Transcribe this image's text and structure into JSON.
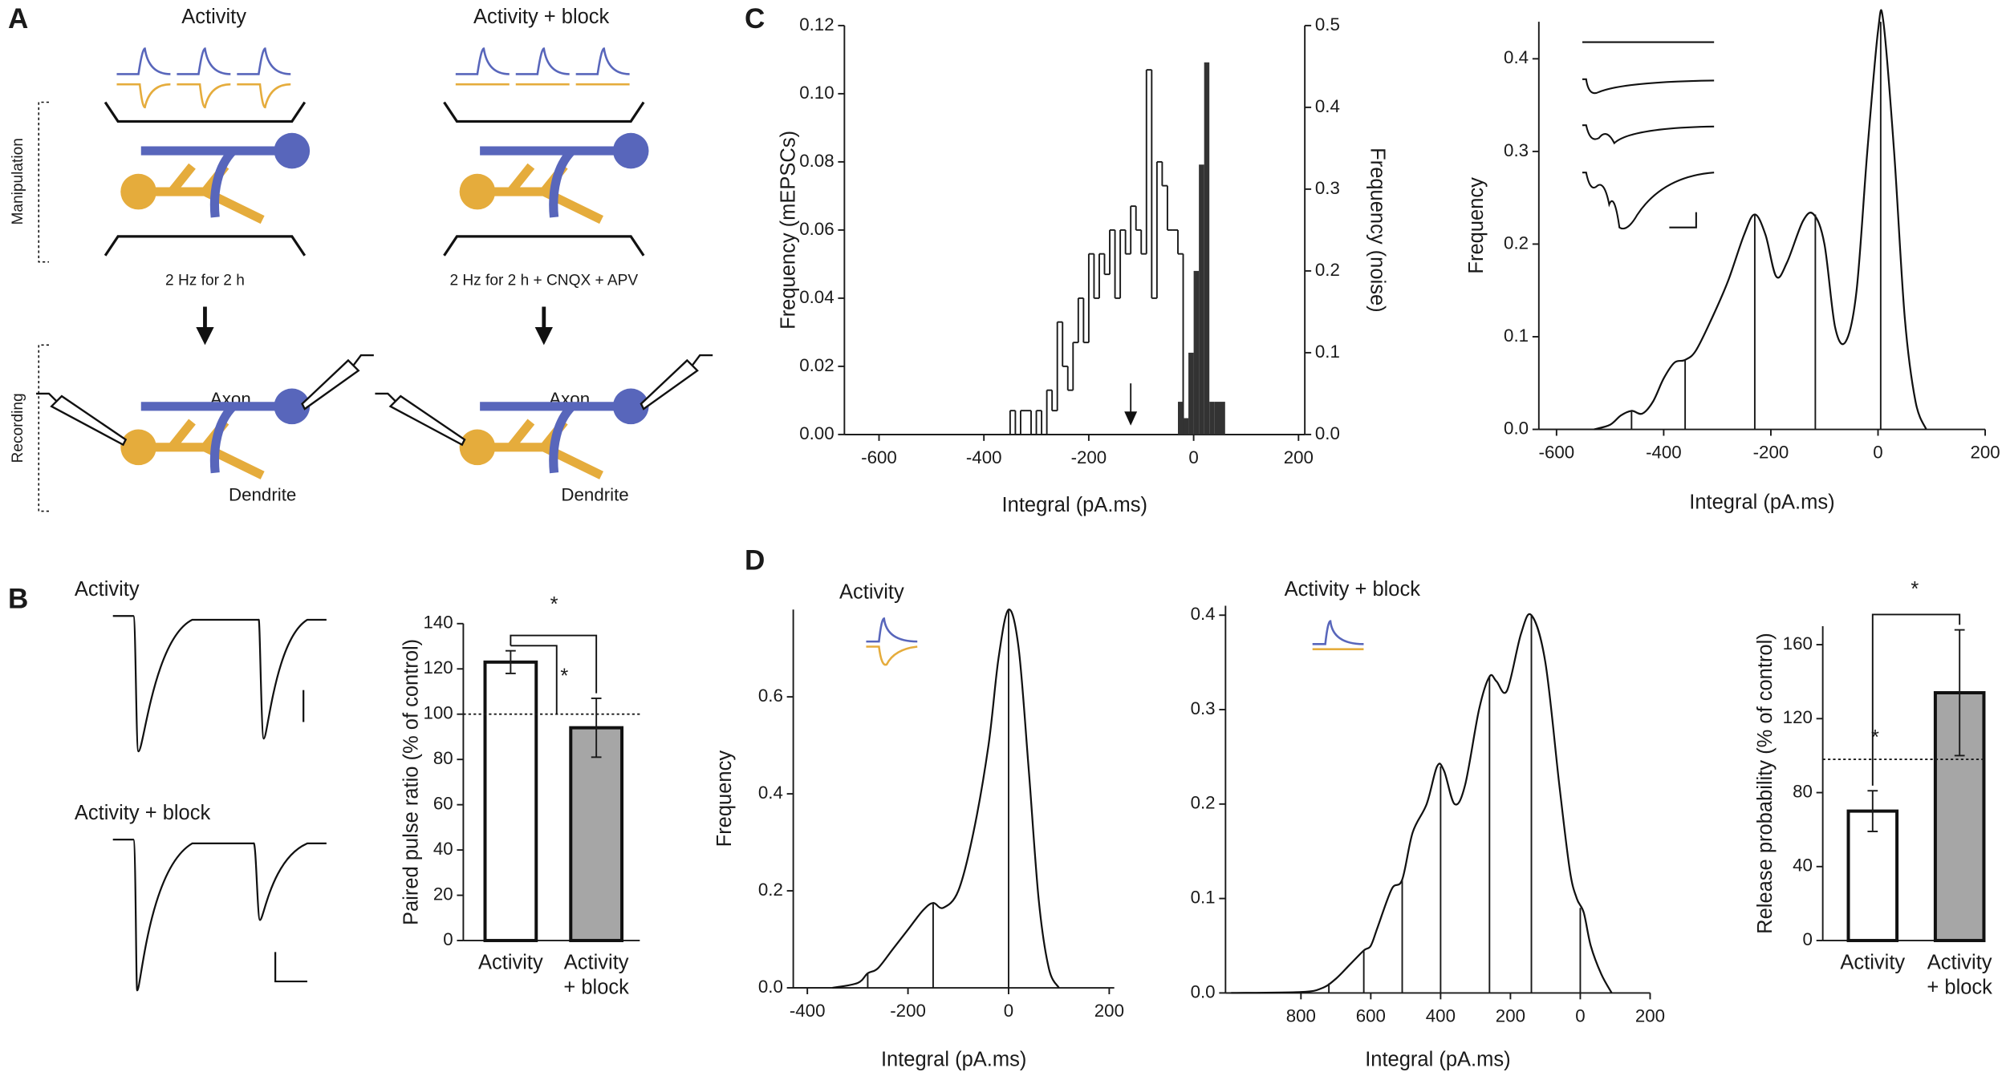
{
  "panel_labels": [
    "A",
    "B",
    "C",
    "D"
  ],
  "diagram": {
    "left_title": "Activity",
    "right_title": "Activity + block",
    "manipulation_label": "Manipulation",
    "recording_label": "Recording",
    "left_condition": "2 Hz for 2 h",
    "right_condition": "2 Hz for 2 h + CNQX + APV",
    "axon_label": "Axon",
    "dendrite_label": "Dendrite"
  },
  "traces": {
    "top_label": "Activity",
    "bottom_label": "Activity + block"
  },
  "chart_data": [
    {
      "type": "bar",
      "ylabel": "Paired pulse ratio (% of control)",
      "categories": [
        "Activity",
        "Activity\n+ block"
      ],
      "values": [
        123,
        94
      ],
      "errors": [
        5,
        13
      ],
      "colors": [
        "#ffffff",
        "#a6a6a6"
      ],
      "ylim": [
        0,
        140
      ],
      "yticks": [
        0,
        20,
        40,
        60,
        80,
        100,
        120,
        140
      ],
      "reference_line": 100,
      "annotations": [
        "*",
        "*"
      ]
    },
    {
      "type": "histogram",
      "xlabel": "Integral (pA.ms)",
      "ylabel": "Frequency (mEPSCs)",
      "y2label": "Frequency (noise)",
      "xlim": [
        -666,
        212
      ],
      "xticks": [
        -600,
        -400,
        -200,
        0,
        200
      ],
      "ylim": [
        0,
        0.12
      ],
      "yticks": [
        {
          "value": 0,
          "label": "0.00"
        },
        {
          "value": 0.02,
          "label": "0.02"
        },
        {
          "value": 0.04,
          "label": "0.04"
        },
        {
          "value": 0.06,
          "label": "0.06"
        },
        {
          "value": 0.08,
          "label": "0.08"
        },
        {
          "value": 0.1,
          "label": "0.10"
        },
        {
          "value": 0.12,
          "label": "0.12"
        }
      ],
      "y2lim": [
        0,
        0.5
      ],
      "y2ticks": [
        {
          "value": 0,
          "label": "0.0"
        },
        0.1,
        0.2,
        0.3,
        0.4,
        0.5
      ],
      "series": [
        {
          "color": "#111111",
          "style": "step",
          "bins": [
            -350,
            -340,
            -330,
            -320,
            -310,
            -300,
            -290,
            -280,
            -270,
            -260,
            -250,
            -240,
            -230,
            -220,
            -210,
            -200,
            -190,
            -180,
            -170,
            -160,
            -150,
            -140,
            -130,
            -120,
            -110,
            -100,
            -90,
            -80,
            -70,
            -60,
            -50,
            -40,
            -30,
            -20
          ],
          "values": [
            0.007,
            0,
            0.007,
            0.007,
            0,
            0.007,
            0,
            0.013,
            0.007,
            0.033,
            0.02,
            0.013,
            0.027,
            0.04,
            0.027,
            0.053,
            0.04,
            0.053,
            0.047,
            0.06,
            0.04,
            0.06,
            0.053,
            0.067,
            0.06,
            0.053,
            0.107,
            0.04,
            0.08,
            0.073,
            0.06,
            0.06,
            0.053
          ]
        },
        {
          "color": "#333333",
          "style": "filled",
          "axis": "y2",
          "bins": [
            -30,
            -20,
            -10,
            0,
            10,
            20,
            30,
            40,
            60
          ],
          "values": [
            0.04,
            0.02,
            0.1,
            0.2,
            0.33,
            0.455,
            0.04,
            0.04
          ]
        }
      ],
      "marker_x": -120
    },
    {
      "type": "line",
      "xlabel": "Integral (pA.ms)",
      "ylabel": "Frequency",
      "xlim": [
        -633,
        200
      ],
      "xticks": [
        -600,
        -400,
        -200,
        0,
        200
      ],
      "ylim": [
        0,
        0.44
      ],
      "yticks": [
        {
          "value": 0,
          "label": "0.0"
        },
        0.1,
        0.2,
        0.3,
        0.4
      ],
      "x": [
        -530,
        -500,
        -480,
        -460,
        -440,
        -420,
        -400,
        -380,
        -360,
        -340,
        -310,
        -280,
        -250,
        -230,
        -210,
        -190,
        -170,
        -140,
        -120,
        -100,
        -80,
        -60,
        -40,
        -20,
        0,
        10,
        30,
        50,
        70,
        90
      ],
      "values": [
        0,
        0.005,
        0.015,
        0.02,
        0.017,
        0.03,
        0.055,
        0.072,
        0.075,
        0.085,
        0.12,
        0.16,
        0.21,
        0.232,
        0.21,
        0.165,
        0.18,
        0.225,
        0.232,
        0.2,
        0.11,
        0.095,
        0.15,
        0.3,
        0.43,
        0.44,
        0.3,
        0.12,
        0.03,
        0
      ],
      "drop_lines": {
        "x": [
          -460,
          -360,
          -230,
          -117,
          5
        ],
        "values": [
          0.02,
          0.075,
          0.232,
          0.232,
          0.44
        ]
      }
    },
    {
      "type": "line",
      "title": "Activity",
      "xlabel": "Integral (pA.ms)",
      "ylabel": "Frequency",
      "xlim": [
        -428,
        210
      ],
      "xticks": [
        -400,
        -200,
        0,
        200
      ],
      "ylim": [
        0,
        0.78
      ],
      "yticks": [
        {
          "value": 0,
          "label": "0.0"
        },
        0.2,
        0.4,
        0.6
      ],
      "x": [
        -350,
        -300,
        -280,
        -260,
        -230,
        -200,
        -170,
        -150,
        -130,
        -100,
        -70,
        -40,
        -20,
        0,
        20,
        40,
        60,
        80,
        100
      ],
      "values": [
        0,
        0.01,
        0.03,
        0.04,
        0.08,
        0.12,
        0.16,
        0.175,
        0.165,
        0.2,
        0.32,
        0.5,
        0.68,
        0.78,
        0.7,
        0.45,
        0.18,
        0.04,
        0
      ],
      "drop_lines": {
        "x": [
          -280,
          -150,
          0
        ],
        "values": [
          0.03,
          0.175,
          0.78
        ]
      }
    },
    {
      "type": "line",
      "title": "Activity + block",
      "xlabel": "Integral (pA.ms)",
      "xlim": [
        1016,
        -200
      ],
      "xticks": [
        800,
        600,
        400,
        200,
        0,
        {
          "value": -200,
          "label": "200"
        }
      ],
      "ylim": [
        0,
        0.41
      ],
      "yticks": [
        {
          "value": 0,
          "label": "0.0"
        },
        0.1,
        0.2,
        0.3,
        0.4
      ],
      "x": [
        1000,
        800,
        740,
        700,
        660,
        620,
        600,
        580,
        540,
        510,
        480,
        440,
        410,
        390,
        360,
        330,
        290,
        260,
        240,
        210,
        170,
        140,
        100,
        60,
        30,
        10,
        -10,
        -30,
        -60,
        -90
      ],
      "values": [
        0,
        0.001,
        0.005,
        0.015,
        0.03,
        0.045,
        0.05,
        0.07,
        0.11,
        0.12,
        0.17,
        0.2,
        0.24,
        0.235,
        0.2,
        0.22,
        0.3,
        0.335,
        0.33,
        0.32,
        0.38,
        0.4,
        0.35,
        0.22,
        0.13,
        0.1,
        0.085,
        0.05,
        0.02,
        0
      ],
      "drop_lines": {
        "x": [
          720,
          620,
          510,
          400,
          260,
          140,
          0
        ],
        "values": [
          0.01,
          0.045,
          0.12,
          0.24,
          0.335,
          0.4,
          0.09
        ]
      }
    },
    {
      "type": "bar",
      "ylabel": "Release probability (% of control)",
      "categories": [
        "Activity",
        "Activity\n+ block"
      ],
      "values": [
        70,
        134
      ],
      "errors": [
        11,
        34
      ],
      "colors": [
        "#ffffff",
        "#a6a6a6"
      ],
      "ylim": [
        0,
        170
      ],
      "yticks": [
        0,
        40,
        80,
        120,
        160
      ],
      "reference_line": 98,
      "annotations": [
        "*",
        "*"
      ]
    }
  ]
}
